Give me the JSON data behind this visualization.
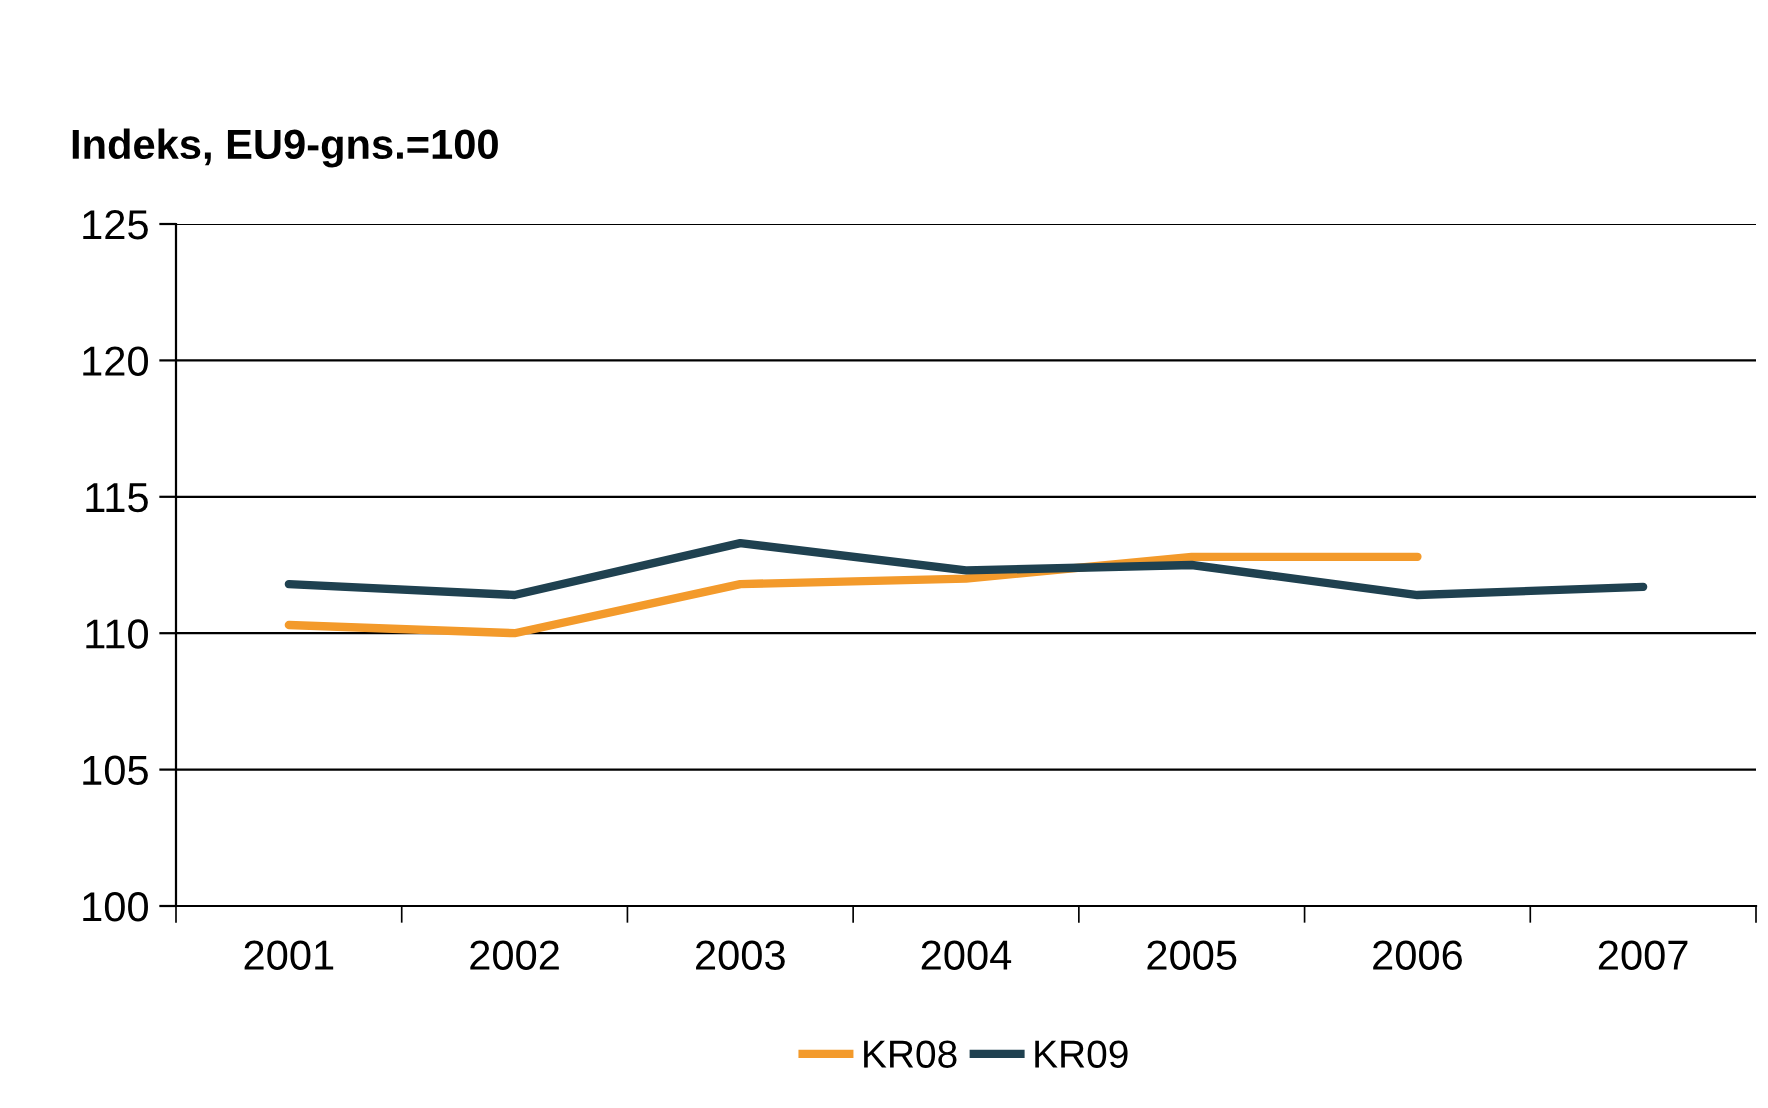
{
  "chart_data": {
    "type": "line",
    "ylabel": "Indeks, EU9-gns.=100",
    "categories": [
      "2001",
      "2002",
      "2003",
      "2004",
      "2005",
      "2006",
      "2007"
    ],
    "series": [
      {
        "name": "KR08",
        "color": "#f39a2b",
        "values": [
          110.3,
          110.0,
          111.8,
          112.0,
          112.8,
          112.8,
          null
        ]
      },
      {
        "name": "KR09",
        "color": "#1f4150",
        "values": [
          111.8,
          111.4,
          113.3,
          112.3,
          112.5,
          111.4,
          111.7
        ]
      }
    ],
    "ylim": [
      100,
      125
    ],
    "yticks": [
      100,
      105,
      110,
      115,
      120,
      125
    ],
    "grid": "y",
    "legend": "bottom",
    "marker": "none",
    "line_style": "solid"
  }
}
